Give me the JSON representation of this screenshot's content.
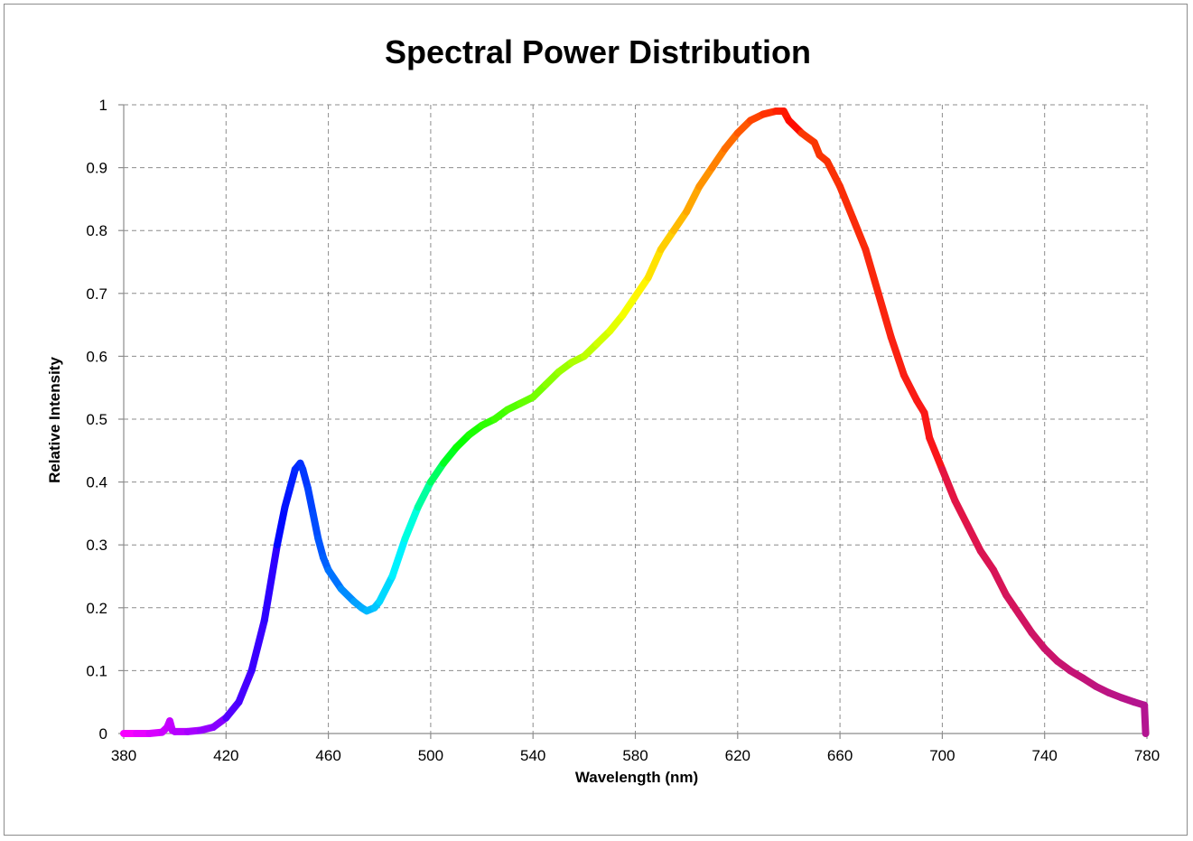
{
  "chart_data": {
    "type": "line",
    "title": "Spectral Power Distribution",
    "xlabel": "Wavelength (nm)",
    "ylabel": "Relative Intensity",
    "xlim": [
      380,
      780
    ],
    "ylim": [
      0,
      1
    ],
    "x_ticks": [
      "380",
      "420",
      "460",
      "500",
      "540",
      "580",
      "620",
      "660",
      "700",
      "740",
      "780"
    ],
    "y_ticks": [
      "0",
      "0.1",
      "0.2",
      "0.3",
      "0.4",
      "0.5",
      "0.6",
      "0.7",
      "0.8",
      "0.9",
      "1"
    ],
    "grid": true,
    "legend": "none",
    "line_coloring": "spectral (wavelength-colored)",
    "series": [
      {
        "x": [
          380,
          385,
          390,
          395,
          397,
          398,
          399,
          400,
          405,
          410,
          415,
          420,
          425,
          430,
          435,
          440,
          443,
          445,
          447,
          449,
          450,
          452,
          454,
          456,
          458,
          460,
          465,
          470,
          473,
          475,
          478,
          480,
          485,
          490,
          495,
          500,
          505,
          510,
          515,
          520,
          525,
          530,
          535,
          540,
          545,
          550,
          555,
          560,
          565,
          570,
          575,
          580,
          585,
          590,
          595,
          600,
          605,
          610,
          615,
          620,
          625,
          630,
          635,
          638,
          640,
          645,
          650,
          652,
          655,
          660,
          665,
          670,
          675,
          680,
          685,
          690,
          693,
          695,
          700,
          705,
          710,
          715,
          720,
          725,
          730,
          735,
          740,
          745,
          750,
          755,
          760,
          765,
          770,
          775,
          779,
          779.5
        ],
        "y": [
          0.0,
          0.0,
          0.0,
          0.002,
          0.01,
          0.02,
          0.005,
          0.003,
          0.003,
          0.005,
          0.01,
          0.025,
          0.05,
          0.1,
          0.18,
          0.3,
          0.36,
          0.39,
          0.42,
          0.43,
          0.42,
          0.39,
          0.35,
          0.31,
          0.28,
          0.26,
          0.23,
          0.21,
          0.2,
          0.195,
          0.2,
          0.21,
          0.25,
          0.31,
          0.36,
          0.4,
          0.43,
          0.455,
          0.475,
          0.49,
          0.5,
          0.515,
          0.525,
          0.535,
          0.555,
          0.575,
          0.59,
          0.6,
          0.62,
          0.64,
          0.665,
          0.695,
          0.725,
          0.77,
          0.8,
          0.83,
          0.87,
          0.9,
          0.93,
          0.955,
          0.975,
          0.985,
          0.99,
          0.99,
          0.975,
          0.955,
          0.94,
          0.92,
          0.91,
          0.87,
          0.82,
          0.77,
          0.7,
          0.63,
          0.57,
          0.53,
          0.51,
          0.47,
          0.42,
          0.37,
          0.33,
          0.29,
          0.26,
          0.22,
          0.19,
          0.16,
          0.135,
          0.115,
          0.1,
          0.088,
          0.075,
          0.065,
          0.057,
          0.05,
          0.045,
          0.0
        ]
      }
    ]
  }
}
